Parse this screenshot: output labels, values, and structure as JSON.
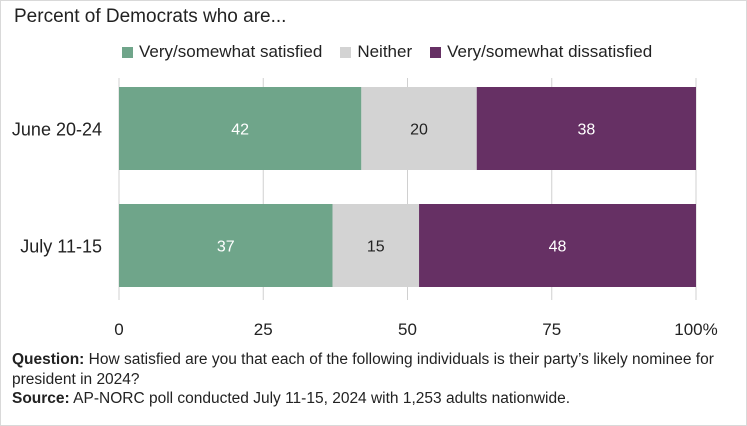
{
  "chart_data": {
    "type": "bar",
    "orientation": "horizontal",
    "stacked": true,
    "subtitle": "Percent of Democrats who are...",
    "categories": [
      "June 20-24",
      "July 11-15"
    ],
    "series": [
      {
        "name": "Very/somewhat satisfied",
        "color": "#6fa58a",
        "values": [
          42,
          37
        ]
      },
      {
        "name": "Neither",
        "color": "#d3d3d3",
        "values": [
          20,
          15
        ]
      },
      {
        "name": "Very/somewhat dissatisfied",
        "color": "#663064",
        "values": [
          38,
          48
        ]
      }
    ],
    "xlim": [
      0,
      100
    ],
    "xticks": [
      "0",
      "25",
      "50",
      "75",
      "100%"
    ],
    "xtick_values": [
      0,
      25,
      50,
      75,
      100
    ],
    "grid": "vertical",
    "legend_position": "top"
  },
  "notes": {
    "question_label": "Question:",
    "question_text": " How satisfied are you that each of the following individuals is their party’s likely nominee for president in 2024?",
    "source_label": "Source:",
    "source_text": " AP-NORC poll conducted July 11-15, 2024 with 1,253 adults nationwide."
  }
}
